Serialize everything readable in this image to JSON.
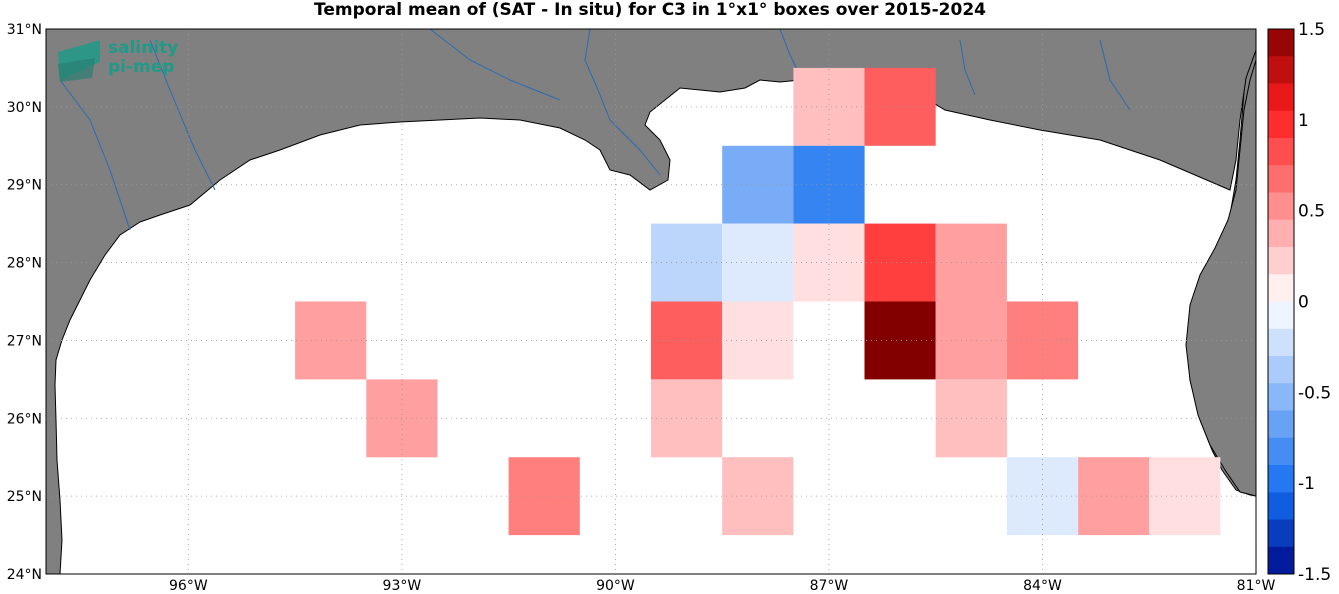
{
  "title": "Temporal mean of (SAT - In situ) for C3 in 1°x1° boxes over 2015-2024",
  "logo": {
    "line1": "salinity",
    "line2": "pi-mep",
    "color": "#1f9a88"
  },
  "axes": {
    "lon_range": [
      -98,
      -81
    ],
    "lat_range": [
      24,
      31
    ],
    "lon_ticks": [
      -96,
      -93,
      -90,
      -87,
      -84,
      -81
    ],
    "lat_ticks": [
      24,
      25,
      26,
      27,
      28,
      29,
      30,
      31
    ],
    "lon_labels": [
      "96°W",
      "93°W",
      "90°W",
      "87°W",
      "84°W",
      "81°W"
    ],
    "lat_labels": [
      "24°N",
      "25°N",
      "26°N",
      "27°N",
      "28°N",
      "29°N",
      "30°N",
      "31°N"
    ],
    "grid": "dotted"
  },
  "colors": {
    "land": "#808080",
    "ocean": "#ffffff",
    "rivers": "#2b6cb0"
  },
  "colorbar": {
    "range": [
      -1.5,
      1.5
    ],
    "ticks": [
      -1.5,
      -1,
      -0.5,
      0,
      0.5,
      1,
      1.5
    ],
    "tick_labels": [
      "-1.5",
      "-1",
      "-0.5",
      "0",
      "0.5",
      "1",
      "1.5"
    ],
    "colormap": "blue-white-red",
    "levels": 20
  },
  "chart_data": {
    "type": "heatmap",
    "cell_size_deg": 1,
    "cells": [
      {
        "lon": -87,
        "lat": 30,
        "value": 0.3
      },
      {
        "lon": -86,
        "lat": 30,
        "value": 0.8
      },
      {
        "lon": -88,
        "lat": 29,
        "value": -0.6
      },
      {
        "lon": -87,
        "lat": 29,
        "value": -0.85
      },
      {
        "lon": -89,
        "lat": 28,
        "value": -0.25
      },
      {
        "lon": -88,
        "lat": 28,
        "value": -0.1
      },
      {
        "lon": -87,
        "lat": 28,
        "value": 0.2
      },
      {
        "lon": -86,
        "lat": 28,
        "value": 0.85
      },
      {
        "lon": -85,
        "lat": 28,
        "value": 0.5
      },
      {
        "lon": -94,
        "lat": 27,
        "value": 0.5
      },
      {
        "lon": -89,
        "lat": 27,
        "value": 0.7
      },
      {
        "lon": -88,
        "lat": 27,
        "value": 0.2
      },
      {
        "lon": -86,
        "lat": 27,
        "value": 1.45
      },
      {
        "lon": -85,
        "lat": 27,
        "value": 0.5
      },
      {
        "lon": -84,
        "lat": 27,
        "value": 0.6
      },
      {
        "lon": -93,
        "lat": 26,
        "value": 0.5
      },
      {
        "lon": -89,
        "lat": 26,
        "value": 0.3
      },
      {
        "lon": -85,
        "lat": 26,
        "value": 0.3
      },
      {
        "lon": -91,
        "lat": 25,
        "value": 0.6
      },
      {
        "lon": -88,
        "lat": 25,
        "value": 0.3
      },
      {
        "lon": -84,
        "lat": 25,
        "value": -0.1
      },
      {
        "lon": -83,
        "lat": 25,
        "value": 0.5
      },
      {
        "lon": -82,
        "lat": 25,
        "value": 0.2
      }
    ]
  }
}
